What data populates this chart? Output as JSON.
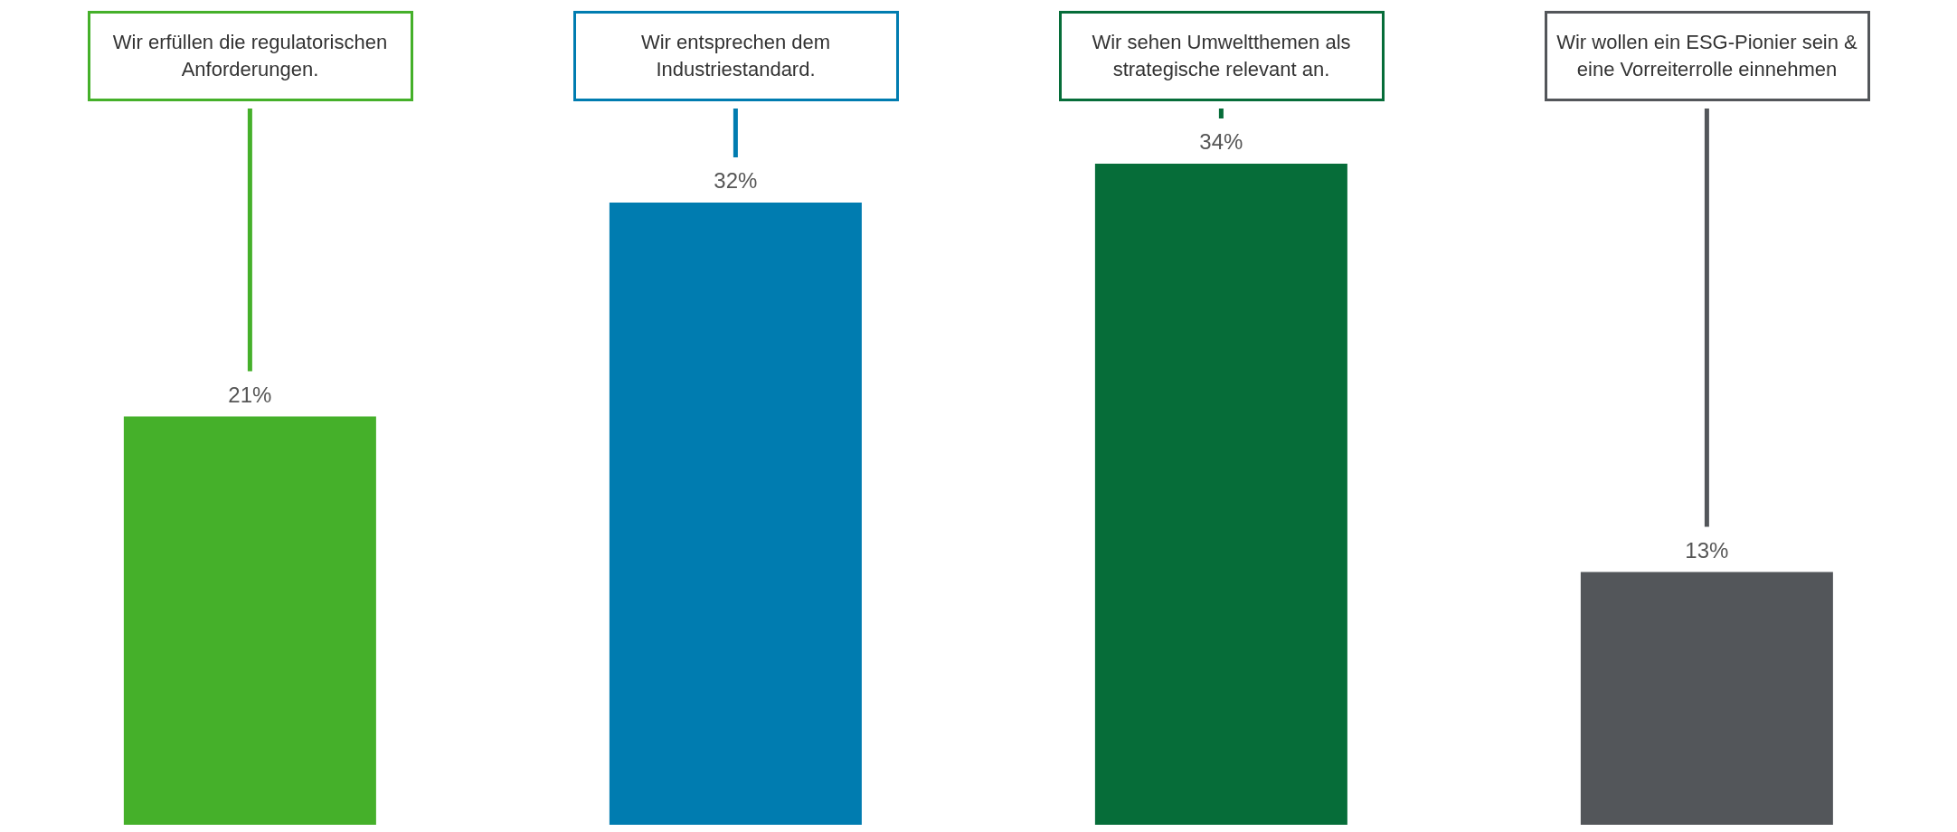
{
  "chart_data": {
    "type": "bar",
    "categories": [
      "Wir erfüllen die regulatorischen Anforderungen.",
      "Wir entsprechen dem Industriestandard.",
      "Wir sehen Umweltthemen als strategische relevant an.",
      "Wir wollen ein ESG-Pionier sein & eine Vorreiterrolle einnehmen"
    ],
    "values": [
      21,
      32,
      34,
      13
    ],
    "colors": [
      "#45b02a",
      "#007cb0",
      "#066d39",
      "#53565a"
    ],
    "value_labels": [
      "21%",
      "32%",
      "34%",
      "13%"
    ],
    "grid": false,
    "legend": false
  }
}
